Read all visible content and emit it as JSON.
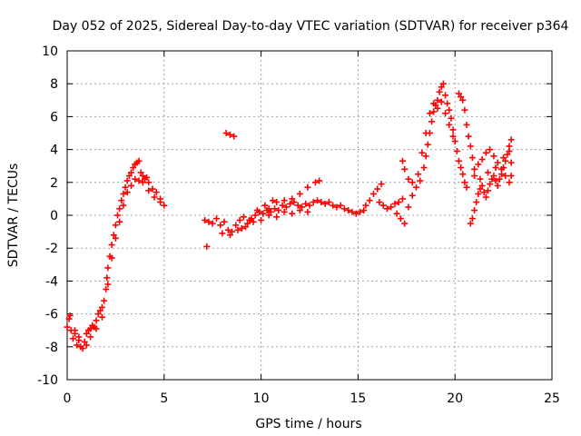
{
  "chart_data": {
    "type": "scatter",
    "title": "Day 052 of 2025, Sidereal Day-to-day VTEC variation (SDTVAR) for receiver p364",
    "xlabel": "GPS time / hours",
    "ylabel": "SDTVAR / TECUs",
    "xlim": [
      0,
      25
    ],
    "ylim": [
      -10,
      10
    ],
    "xticks": [
      "0",
      "5",
      "10",
      "15",
      "20",
      "25"
    ],
    "yticks": [
      "-10",
      "-8",
      "-6",
      "-4",
      "-2",
      "0",
      "2",
      "4",
      "6",
      "8",
      "10"
    ],
    "grid": true,
    "marker": "+",
    "color": "#ff0000",
    "series": [
      {
        "name": "SDTVAR",
        "points": [
          [
            0.0,
            -6.8
          ],
          [
            0.1,
            -6.3
          ],
          [
            0.15,
            -6.1
          ],
          [
            0.2,
            -7.0
          ],
          [
            0.3,
            -7.5
          ],
          [
            0.4,
            -7.2
          ],
          [
            0.5,
            -7.9
          ],
          [
            0.6,
            -7.6
          ],
          [
            0.7,
            -8.0
          ],
          [
            0.8,
            -8.1
          ],
          [
            0.9,
            -7.7
          ],
          [
            1.0,
            -7.2
          ],
          [
            1.1,
            -7.0
          ],
          [
            1.2,
            -6.9
          ],
          [
            1.3,
            -6.7
          ],
          [
            1.4,
            -6.8
          ],
          [
            1.5,
            -6.4
          ],
          [
            1.6,
            -6.0
          ],
          [
            1.7,
            -5.8
          ],
          [
            1.8,
            -5.6
          ],
          [
            1.9,
            -5.2
          ],
          [
            2.0,
            -4.5
          ],
          [
            2.05,
            -3.8
          ],
          [
            2.1,
            -3.2
          ],
          [
            2.2,
            -2.5
          ],
          [
            2.3,
            -1.8
          ],
          [
            2.4,
            -1.2
          ],
          [
            2.5,
            -0.6
          ],
          [
            2.6,
            0.0
          ],
          [
            2.7,
            0.4
          ],
          [
            2.8,
            0.9
          ],
          [
            2.9,
            1.3
          ],
          [
            3.0,
            1.7
          ],
          [
            3.1,
            2.1
          ],
          [
            3.2,
            2.4
          ],
          [
            3.3,
            2.6
          ],
          [
            3.4,
            2.9
          ],
          [
            3.5,
            3.1
          ],
          [
            3.6,
            3.2
          ],
          [
            3.7,
            3.3
          ],
          [
            3.8,
            2.6
          ],
          [
            3.9,
            2.4
          ],
          [
            4.0,
            2.2
          ],
          [
            4.1,
            2.3
          ],
          [
            4.2,
            2.0
          ],
          [
            4.4,
            1.6
          ],
          [
            4.6,
            1.4
          ],
          [
            4.8,
            1.0
          ],
          [
            5.0,
            0.6
          ],
          [
            0.4,
            -7.0
          ],
          [
            0.6,
            -7.4
          ],
          [
            1.0,
            -7.9
          ],
          [
            1.2,
            -7.4
          ],
          [
            1.5,
            -6.9
          ],
          [
            1.8,
            -6.2
          ],
          [
            2.1,
            -4.2
          ],
          [
            2.3,
            -2.6
          ],
          [
            2.5,
            -1.4
          ],
          [
            2.7,
            -0.4
          ],
          [
            2.9,
            0.6
          ],
          [
            3.1,
            1.4
          ],
          [
            3.3,
            1.8
          ],
          [
            3.5,
            2.2
          ],
          [
            3.7,
            2.1
          ],
          [
            3.9,
            2.0
          ],
          [
            4.2,
            1.5
          ],
          [
            4.5,
            1.1
          ],
          [
            4.8,
            0.8
          ],
          [
            7.2,
            -1.9
          ],
          [
            8.2,
            5.0
          ],
          [
            8.4,
            4.9
          ],
          [
            8.6,
            4.8
          ],
          [
            7.1,
            -0.3
          ],
          [
            7.3,
            -0.4
          ],
          [
            7.5,
            -0.5
          ],
          [
            7.7,
            -0.2
          ],
          [
            7.9,
            -0.6
          ],
          [
            8.1,
            -0.4
          ],
          [
            8.3,
            -0.9
          ],
          [
            8.5,
            -1.0
          ],
          [
            8.7,
            -0.6
          ],
          [
            8.9,
            -0.3
          ],
          [
            9.1,
            -0.1
          ],
          [
            9.3,
            -0.5
          ],
          [
            9.5,
            -0.2
          ],
          [
            9.7,
            0.0
          ],
          [
            9.9,
            0.2
          ],
          [
            10.1,
            0.1
          ],
          [
            10.3,
            0.3
          ],
          [
            10.5,
            0.2
          ],
          [
            10.7,
            0.4
          ],
          [
            10.9,
            0.3
          ],
          [
            11.1,
            0.6
          ],
          [
            11.3,
            0.5
          ],
          [
            11.5,
            0.7
          ],
          [
            11.7,
            0.8
          ],
          [
            11.9,
            0.6
          ],
          [
            12.1,
            0.5
          ],
          [
            12.3,
            0.7
          ],
          [
            12.5,
            0.6
          ],
          [
            12.7,
            0.8
          ],
          [
            12.9,
            0.9
          ],
          [
            13.1,
            0.8
          ],
          [
            13.3,
            0.7
          ],
          [
            13.5,
            0.8
          ],
          [
            13.7,
            0.6
          ],
          [
            13.9,
            0.5
          ],
          [
            14.1,
            0.6
          ],
          [
            14.3,
            0.4
          ],
          [
            14.5,
            0.3
          ],
          [
            14.7,
            0.2
          ],
          [
            14.9,
            0.1
          ],
          [
            15.1,
            0.2
          ],
          [
            15.3,
            0.3
          ],
          [
            8.0,
            -1.1
          ],
          [
            8.4,
            -1.2
          ],
          [
            8.8,
            -0.9
          ],
          [
            9.2,
            -0.7
          ],
          [
            9.6,
            -0.4
          ],
          [
            10.0,
            -0.3
          ],
          [
            10.4,
            0.0
          ],
          [
            10.8,
            -0.1
          ],
          [
            11.2,
            0.2
          ],
          [
            11.6,
            0.1
          ],
          [
            12.0,
            0.3
          ],
          [
            12.4,
            0.2
          ],
          [
            10.4,
            0.4
          ],
          [
            10.8,
            0.8
          ],
          [
            11.2,
            0.9
          ],
          [
            11.6,
            1.0
          ],
          [
            12.0,
            1.3
          ],
          [
            12.4,
            1.7
          ],
          [
            12.8,
            2.0
          ],
          [
            13.0,
            2.1
          ],
          [
            9.0,
            -0.8
          ],
          [
            9.4,
            -0.3
          ],
          [
            9.8,
            0.3
          ],
          [
            10.2,
            0.6
          ],
          [
            10.6,
            0.9
          ],
          [
            15.4,
            0.6
          ],
          [
            15.6,
            0.9
          ],
          [
            15.8,
            1.3
          ],
          [
            16.0,
            1.6
          ],
          [
            16.2,
            1.9
          ],
          [
            16.1,
            0.8
          ],
          [
            16.3,
            0.6
          ],
          [
            16.5,
            0.4
          ],
          [
            16.7,
            0.5
          ],
          [
            16.9,
            0.7
          ],
          [
            17.1,
            0.8
          ],
          [
            17.3,
            1.0
          ],
          [
            17.0,
            0.1
          ],
          [
            17.2,
            -0.2
          ],
          [
            17.4,
            -0.5
          ],
          [
            17.6,
            0.5
          ],
          [
            17.8,
            1.2
          ],
          [
            18.0,
            1.7
          ],
          [
            18.2,
            2.1
          ],
          [
            18.4,
            2.9
          ],
          [
            18.5,
            3.6
          ],
          [
            18.6,
            4.3
          ],
          [
            18.7,
            5.0
          ],
          [
            18.8,
            5.7
          ],
          [
            18.9,
            6.3
          ],
          [
            19.0,
            6.7
          ],
          [
            19.1,
            7.0
          ],
          [
            19.2,
            7.5
          ],
          [
            19.3,
            7.8
          ],
          [
            19.4,
            8.0
          ],
          [
            19.5,
            7.3
          ],
          [
            19.6,
            6.8
          ],
          [
            19.7,
            6.4
          ],
          [
            19.8,
            5.9
          ],
          [
            19.9,
            5.2
          ],
          [
            20.0,
            4.5
          ],
          [
            20.1,
            3.9
          ],
          [
            20.2,
            3.3
          ],
          [
            20.3,
            2.9
          ],
          [
            20.4,
            2.5
          ],
          [
            20.5,
            2.0
          ],
          [
            20.6,
            1.7
          ],
          [
            17.3,
            3.3
          ],
          [
            17.4,
            2.8
          ],
          [
            17.6,
            2.2
          ],
          [
            17.8,
            2.0
          ],
          [
            18.1,
            2.5
          ],
          [
            18.3,
            3.8
          ],
          [
            18.5,
            5.0
          ],
          [
            18.7,
            6.2
          ],
          [
            18.9,
            6.8
          ],
          [
            19.1,
            6.5
          ],
          [
            19.3,
            6.9
          ],
          [
            19.5,
            6.2
          ],
          [
            19.7,
            5.5
          ],
          [
            19.9,
            4.8
          ],
          [
            20.2,
            7.4
          ],
          [
            20.3,
            7.2
          ],
          [
            20.4,
            7.0
          ],
          [
            20.5,
            6.4
          ],
          [
            20.6,
            5.5
          ],
          [
            20.7,
            4.8
          ],
          [
            20.8,
            4.2
          ],
          [
            20.9,
            3.5
          ],
          [
            21.0,
            2.8
          ],
          [
            20.8,
            -0.5
          ],
          [
            20.9,
            -0.2
          ],
          [
            21.0,
            0.3
          ],
          [
            21.1,
            0.8
          ],
          [
            21.2,
            1.3
          ],
          [
            21.3,
            1.6
          ],
          [
            21.4,
            1.8
          ],
          [
            21.5,
            1.4
          ],
          [
            21.6,
            1.1
          ],
          [
            21.7,
            1.5
          ],
          [
            21.8,
            1.9
          ],
          [
            21.9,
            2.2
          ],
          [
            22.0,
            2.4
          ],
          [
            22.1,
            2.1
          ],
          [
            22.2,
            1.8
          ],
          [
            22.3,
            2.2
          ],
          [
            22.4,
            2.5
          ],
          [
            22.5,
            2.9
          ],
          [
            22.6,
            3.3
          ],
          [
            22.7,
            3.7
          ],
          [
            22.8,
            4.2
          ],
          [
            22.9,
            4.6
          ],
          [
            21.2,
            3.1
          ],
          [
            21.4,
            3.4
          ],
          [
            21.6,
            3.8
          ],
          [
            21.8,
            4.0
          ],
          [
            22.0,
            3.6
          ],
          [
            22.2,
            3.2
          ],
          [
            22.4,
            2.8
          ],
          [
            22.6,
            2.4
          ],
          [
            22.8,
            2.0
          ],
          [
            22.9,
            2.4
          ],
          [
            22.9,
            3.2
          ],
          [
            21.0,
            2.4
          ],
          [
            21.3,
            2.2
          ],
          [
            21.7,
            2.6
          ],
          [
            22.1,
            2.9
          ],
          [
            22.5,
            3.5
          ],
          [
            22.8,
            3.9
          ]
        ]
      }
    ]
  }
}
